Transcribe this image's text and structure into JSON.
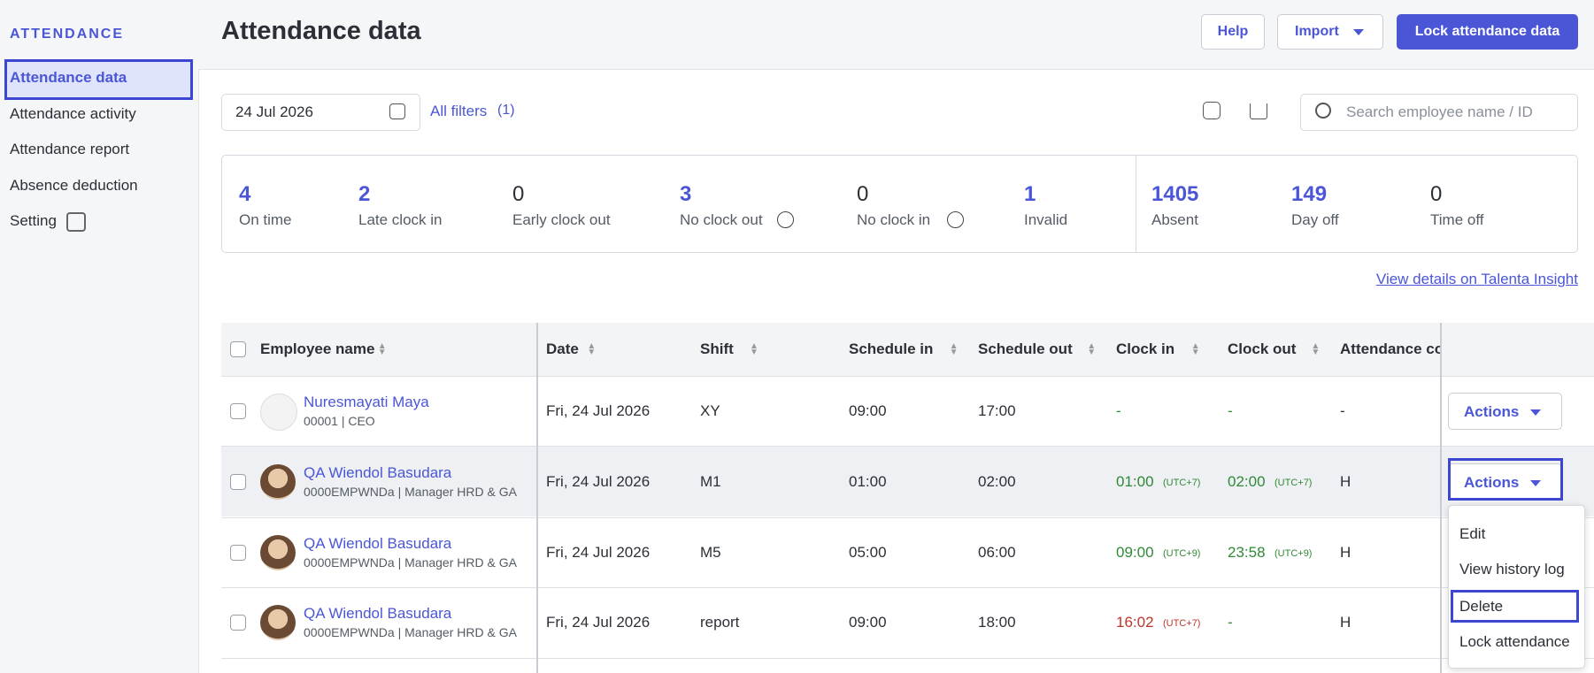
{
  "sidebar": {
    "heading": "ATTENDANCE",
    "items": [
      "Attendance data",
      "Attendance activity",
      "Attendance report",
      "Absence deduction",
      "Setting"
    ]
  },
  "header": {
    "title": "Attendance data",
    "buttons": [
      "Help",
      "Import",
      "Lock attendance data"
    ]
  },
  "toolbar": {
    "date": "24 Jul 2026",
    "filters": "All filters",
    "filter_count": "(1)",
    "search_placeholder": "Search employee name / ID"
  },
  "stats": [
    {
      "value": 4,
      "label": "On time"
    },
    {
      "value": 2,
      "label": "Late clock in"
    },
    {
      "value": 0,
      "label": "Early clock out"
    },
    {
      "value": 3,
      "label": "No clock out"
    },
    {
      "value": 0,
      "label": "No clock in"
    },
    {
      "value": 1,
      "label": "Invalid"
    },
    {
      "value": 1405,
      "label": "Absent"
    },
    {
      "value": 149,
      "label": "Day off"
    },
    {
      "value": 0,
      "label": "Time off"
    }
  ],
  "insight_link": "View details on Talenta Insight",
  "table": {
    "columns": [
      "Employee name",
      "Date",
      "Shift",
      "Schedule in",
      "Schedule out",
      "Clock in",
      "Clock out",
      "Attendance co"
    ],
    "rows": [
      {
        "name": "Nuresmayati Maya",
        "meta": "00001 | CEO",
        "date": "Fri, 24 Jul 2026",
        "shift": "XY",
        "schedule_in": "09:00",
        "schedule_out": "17:00",
        "clock_in": "-",
        "clock_in_tz": null,
        "clock_out": "-",
        "clock_out_tz": null,
        "code": "-",
        "action": "Actions"
      },
      {
        "name": "QA Wiendol Basudara",
        "meta": "0000EMPWNDa | Manager HRD & GA",
        "date": "Fri, 24 Jul 2026",
        "shift": "M1",
        "schedule_in": "01:00",
        "schedule_out": "02:00",
        "clock_in": "01:00",
        "clock_in_tz": "(UTC+7)",
        "clock_out": "02:00",
        "clock_out_tz": "(UTC+7)",
        "code": "H",
        "action": "Actions"
      },
      {
        "name": "QA Wiendol Basudara",
        "meta": "0000EMPWNDa | Manager HRD & GA",
        "date": "Fri, 24 Jul 2026",
        "shift": "M5",
        "schedule_in": "05:00",
        "schedule_out": "06:00",
        "clock_in": "09:00",
        "clock_in_tz": "(UTC+9)",
        "clock_out": "23:58",
        "clock_out_tz": "(UTC+9)",
        "code": "H",
        "action": null
      },
      {
        "name": "QA Wiendol Basudara",
        "meta": "0000EMPWNDa | Manager HRD & GA",
        "date": "Fri, 24 Jul 2026",
        "shift": "report",
        "schedule_in": "09:00",
        "schedule_out": "18:00",
        "clock_in": "16:02",
        "clock_in_tz": "(UTC+7)",
        "clock_out": "-",
        "clock_out_tz": null,
        "code": "H",
        "action": null
      }
    ]
  },
  "menu": [
    "Edit",
    "View history log",
    "Delete",
    "Lock attendance"
  ]
}
